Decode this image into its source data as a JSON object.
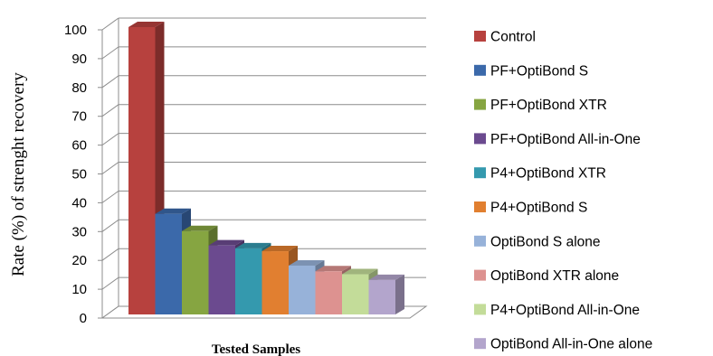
{
  "chart_data": {
    "type": "bar",
    "title": "",
    "xlabel": "Tested Samples",
    "ylabel": "Rate (%) of strenght recovery",
    "ylim": [
      0,
      100
    ],
    "yticks": [
      0,
      10,
      20,
      30,
      40,
      50,
      60,
      70,
      80,
      90,
      100
    ],
    "grid": true,
    "legend_position": "right",
    "style": "3d-column",
    "series": [
      {
        "name": "Control",
        "value": 100,
        "color": "#b7413e"
      },
      {
        "name": "PF+OptiBond S",
        "value": 35,
        "color": "#3b69aa"
      },
      {
        "name": "PF+OptiBond XTR",
        "value": 29,
        "color": "#86a541"
      },
      {
        "name": "PF+OptiBond All-in-One",
        "value": 24,
        "color": "#6b4a8f"
      },
      {
        "name": "P4+OptiBond XTR",
        "value": 23,
        "color": "#3499ae"
      },
      {
        "name": "P4+OptiBond S",
        "value": 22,
        "color": "#e17f30"
      },
      {
        "name": "OptiBond S alone",
        "value": 17,
        "color": "#97b2d9"
      },
      {
        "name": "OptiBond XTR alone",
        "value": 15,
        "color": "#dd9290"
      },
      {
        "name": "P4+OptiBond All-in-One",
        "value": 14,
        "color": "#c3dc99"
      },
      {
        "name": "OptiBond All-in-One alone",
        "value": 12,
        "color": "#b3a5cc"
      }
    ]
  }
}
